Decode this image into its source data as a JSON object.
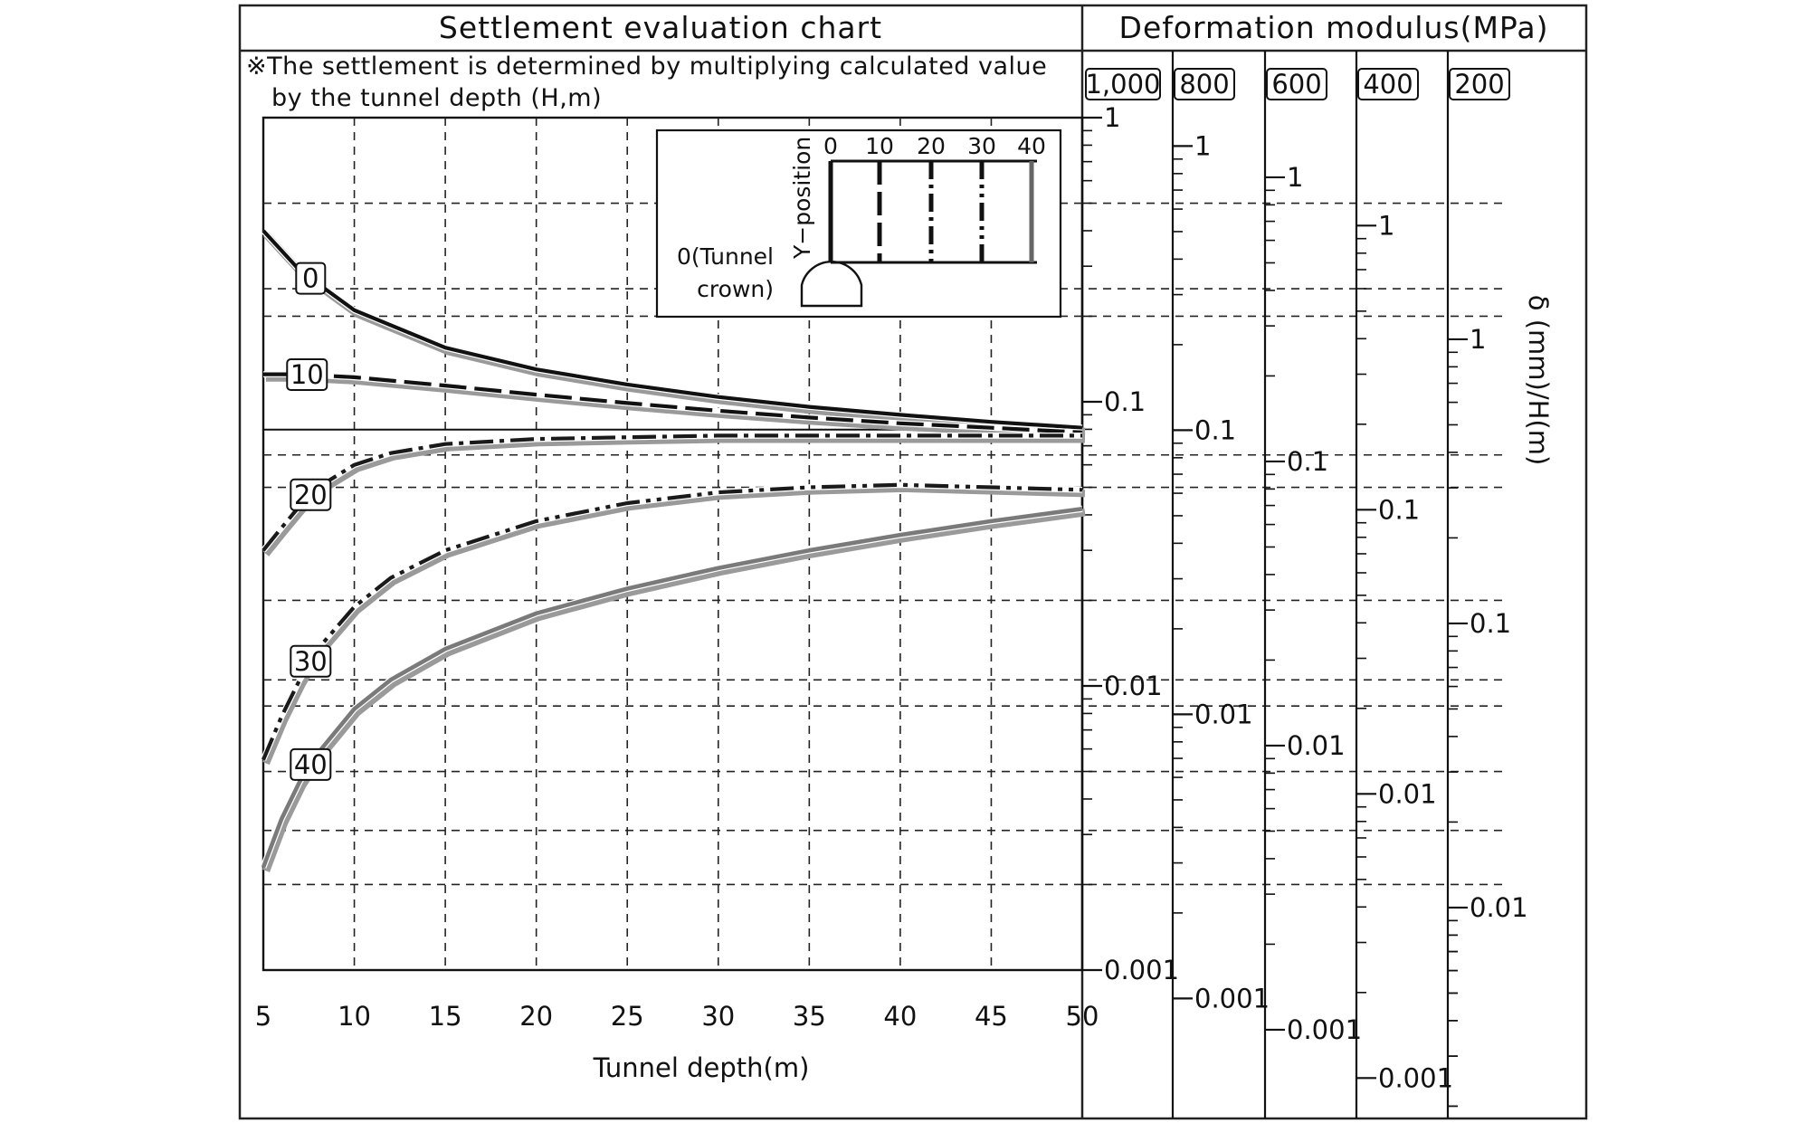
{
  "header": {
    "title": "Settlement evaluation chart",
    "modulus_title": "Deformation modulus(MPa)",
    "note_line1": "※The settlement is determined by multiplying calculated value",
    "note_line2": "by the tunnel depth (H,m)"
  },
  "inset": {
    "y_label": "Y−position",
    "crown_label_line1": "0(Tunnel",
    "crown_label_line2": "crown)",
    "positions": [
      "0",
      "10",
      "20",
      "30",
      "40"
    ]
  },
  "chart_data": {
    "type": "line",
    "xlabel": "Tunnel depth(m)",
    "ylabel": "δ (mm)/H(m)",
    "x_ticks": [
      "5",
      "10",
      "15",
      "20",
      "25",
      "30",
      "35",
      "40",
      "45",
      "50"
    ],
    "xlim": [
      5,
      50
    ],
    "y_scale": "log",
    "ylim": [
      0.001,
      1
    ],
    "y_axes": [
      {
        "modulus": "1,000",
        "ticks": [
          "1",
          "0.1",
          "0.01",
          "0.001"
        ],
        "offset_decades": 0
      },
      {
        "modulus": "800",
        "ticks": [
          "1",
          "0.1",
          "0.01",
          "0.001"
        ],
        "offset_decades": 0.1
      },
      {
        "modulus": "600",
        "ticks": [
          "1",
          "0.1",
          "0.01",
          "0.001"
        ],
        "offset_decades": 0.21
      },
      {
        "modulus": "400",
        "ticks": [
          "1",
          "0.1",
          "0.01",
          "0.001"
        ],
        "offset_decades": 0.38
      },
      {
        "modulus": "200",
        "ticks": [
          "1",
          "0.1",
          "0.01"
        ],
        "offset_decades": 0.78
      }
    ],
    "series": [
      {
        "name": "0",
        "x": [
          5,
          7,
          10,
          15,
          20,
          25,
          30,
          35,
          40,
          45,
          50
        ],
        "y": [
          0.4,
          0.29,
          0.21,
          0.155,
          0.13,
          0.115,
          0.104,
          0.096,
          0.09,
          0.085,
          0.081
        ]
      },
      {
        "name": "10",
        "x": [
          5,
          7,
          10,
          15,
          20,
          25,
          30,
          35,
          40,
          45,
          50
        ],
        "y": [
          0.125,
          0.125,
          0.122,
          0.114,
          0.106,
          0.099,
          0.093,
          0.088,
          0.084,
          0.081,
          0.078
        ]
      },
      {
        "name": "20",
        "x": [
          5,
          6,
          7,
          8,
          10,
          12,
          15,
          20,
          25,
          30,
          35,
          40,
          45,
          50
        ],
        "y": [
          0.03,
          0.036,
          0.043,
          0.05,
          0.06,
          0.066,
          0.071,
          0.074,
          0.075,
          0.076,
          0.076,
          0.076,
          0.076,
          0.076
        ]
      },
      {
        "name": "30",
        "x": [
          5,
          6,
          7,
          8,
          10,
          12,
          15,
          20,
          25,
          30,
          35,
          40,
          45,
          50
        ],
        "y": [
          0.0055,
          0.0078,
          0.0105,
          0.0135,
          0.019,
          0.024,
          0.03,
          0.038,
          0.044,
          0.048,
          0.05,
          0.051,
          0.05,
          0.049
        ]
      },
      {
        "name": "40",
        "x": [
          5,
          6,
          7,
          8,
          10,
          12,
          15,
          20,
          25,
          30,
          35,
          40,
          45,
          50
        ],
        "y": [
          0.0023,
          0.0034,
          0.0046,
          0.0058,
          0.0083,
          0.0105,
          0.0135,
          0.018,
          0.022,
          0.026,
          0.03,
          0.034,
          0.038,
          0.042
        ]
      }
    ],
    "horizontal_reference_y": 0.081,
    "series_colors": {
      "0": "#111111",
      "10": "#111111",
      "20": "#1a1a1a",
      "30": "#1a1a1a",
      "40": "#7a7a7a"
    }
  }
}
